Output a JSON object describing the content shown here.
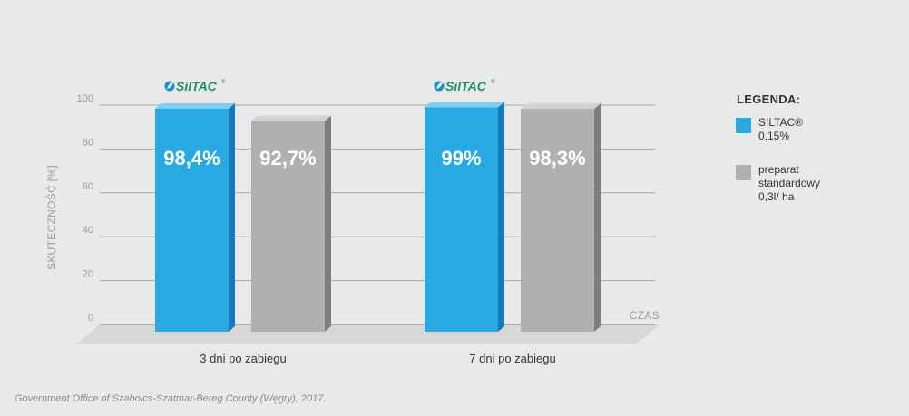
{
  "chart_data": {
    "type": "bar",
    "ylabel": "SKUTECZNOŚĆ [%]",
    "xlabel": "CZAS",
    "ylim": [
      0,
      100
    ],
    "yticks": [
      0,
      20,
      40,
      60,
      80,
      100
    ],
    "categories": [
      "3 dni po zabiegu",
      "7 dni po zabiegu"
    ],
    "series": [
      {
        "name": "SILTAC® 0,15%",
        "values": [
          98.4,
          99
        ],
        "labels": [
          "98,4%",
          "99%"
        ],
        "color": "#29a9e1"
      },
      {
        "name": "preparat standardowy 0,3l/ ha",
        "values": [
          92.7,
          98.3
        ],
        "labels": [
          "92,7%",
          "98,3%"
        ],
        "color": "#b0b0b0"
      }
    ],
    "grid": true,
    "legend_position": "right"
  },
  "logo": {
    "text": "SilTAC",
    "mark": "®",
    "icon": "leaf-drop-icon",
    "color": "#1f8f6a"
  },
  "legend": {
    "title": "LEGENDA:",
    "items": [
      {
        "lines": [
          "SILTAC®",
          "0,15%"
        ],
        "color": "#29a9e1"
      },
      {
        "lines": [
          "preparat",
          "standardowy",
          "0,3l/ ha"
        ],
        "color": "#b0b0b0"
      }
    ]
  },
  "source": "Government Office of Szabolcs-Szatmar-Bereg County (Węgry), 2017."
}
